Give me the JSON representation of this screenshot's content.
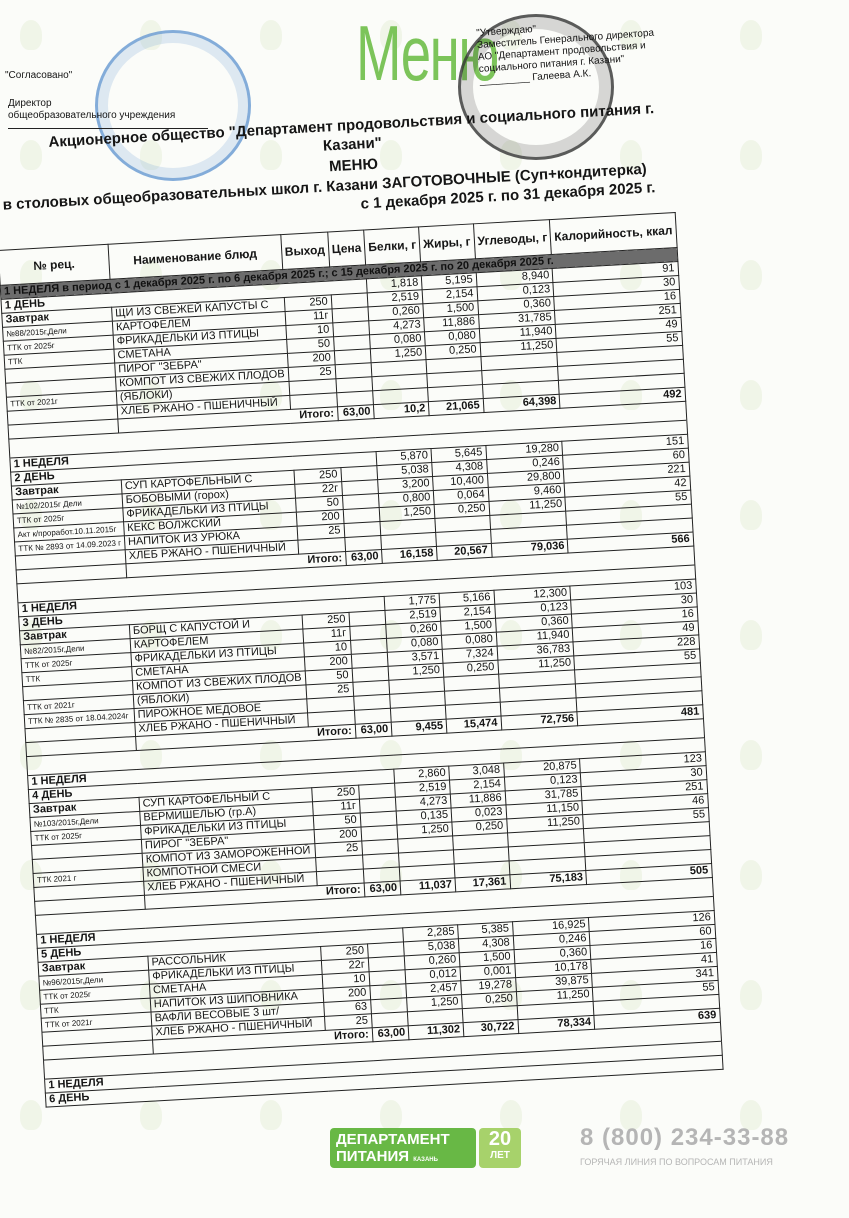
{
  "header": {
    "logo_word": "Меню",
    "agreed": "\"Согласовано\"",
    "director_line1": "Директор",
    "director_line2": "общеобразовательного учреждения",
    "approve_lines": [
      "\"Утверждаю\"",
      "Заместитель Генерального директора",
      "АО \"Департамент продовольствия и",
      "социального питания г. Казани\"",
      "_________ Галеева А.К."
    ],
    "org": "Акционерное общество \"Департамент продовольствия и социального питания г. Казани\"",
    "title": "МЕНЮ",
    "subtitle": "в столовых общеобразовательных школ г. Казани ЗАГОТОВОЧНЫЕ (Суп+кондитерка)",
    "period": "с 1 декабря 2025 г. по 31 декабря 2025 г."
  },
  "columns": [
    "№ рец.",
    "Наименование блюд",
    "Выход",
    "Цена",
    "Белки, г",
    "Жиры, г",
    "Углеводы, г",
    "Калорийность, ккал"
  ],
  "period_band": "1 НЕДЕЛЯ в период  с 1 декабря 2025 г. по 6 декабря 2025 г.; с 15 декабря 2025 г. по 20 декабря 2025 г.",
  "total_label": "Итого:",
  "meal_label": "Завтрак",
  "days": [
    {
      "week": "1 НЕДЕЛЯ",
      "day": "1 ДЕНЬ",
      "head": [
        "1,818",
        "5,195",
        "8,940",
        "91"
      ],
      "rows": [
        [
          "",
          "ЩИ ИЗ СВЕЖЕЙ КАПУСТЫ С",
          "250",
          "",
          "2,519",
          "2,154",
          "0,123",
          "30"
        ],
        [
          "№88/2015г,Дели",
          "КАРТОФЕЛЕМ",
          "11г",
          "",
          "0,260",
          "1,500",
          "0,360",
          "16"
        ],
        [
          "ТТК от 2025г",
          "ФРИКАДЕЛЬКИ ИЗ ПТИЦЫ",
          "10",
          "",
          "4,273",
          "11,886",
          "31,785",
          "251"
        ],
        [
          "ТТК",
          "СМЕТАНА",
          "50",
          "",
          "0,080",
          "0,080",
          "11,940",
          "49"
        ],
        [
          "",
          "ПИРОГ \"ЗЕБРА\"",
          "200",
          "",
          "1,250",
          "0,250",
          "11,250",
          "55"
        ],
        [
          "",
          "КОМПОТ ИЗ СВЕЖИХ ПЛОДОВ",
          "25",
          "",
          "",
          "",
          "",
          ""
        ],
        [
          "ТТК от 2021г",
          "(ЯБЛОКИ)",
          "",
          "",
          "",
          "",
          "",
          ""
        ],
        [
          "",
          "ХЛЕБ РЖАНО - ПШЕНИЧНЫЙ",
          "",
          "",
          "",
          "",
          "",
          ""
        ]
      ],
      "total": [
        "63,00",
        "10,2",
        "21,065",
        "64,398",
        "492"
      ]
    },
    {
      "week": "1 НЕДЕЛЯ",
      "day": "2 ДЕНЬ",
      "head": [
        "5,870",
        "5,645",
        "19,280",
        "151"
      ],
      "rows": [
        [
          "",
          "СУП КАРТОФЕЛЬНЫЙ С",
          "250",
          "",
          "5,038",
          "4,308",
          "0,246",
          "60"
        ],
        [
          "№102/2015г Дели",
          "БОБОВЫМИ (горох)",
          "22г",
          "",
          "3,200",
          "10,400",
          "29,800",
          "221"
        ],
        [
          "ТТК от 2025г",
          "ФРИКАДЕЛЬКИ ИЗ ПТИЦЫ",
          "50",
          "",
          "0,800",
          "0,064",
          "9,460",
          "42"
        ],
        [
          "Акт к/проработ.10.11.2015г",
          "КЕКС ВОЛЖСКИЙ",
          "200",
          "",
          "1,250",
          "0,250",
          "11,250",
          "55"
        ],
        [
          "ТТК № 2893 от 14.09.2023 г",
          "НАПИТОК ИЗ УРЮКА",
          "25",
          "",
          "",
          "",
          "",
          ""
        ],
        [
          "",
          "ХЛЕБ РЖАНО - ПШЕНИЧНЫЙ",
          "",
          "",
          "",
          "",
          "",
          ""
        ]
      ],
      "total": [
        "63,00",
        "16,158",
        "20,567",
        "79,036",
        "566"
      ]
    },
    {
      "week": "1 НЕДЕЛЯ",
      "day": "3 ДЕНЬ",
      "head": [
        "1,775",
        "5,166",
        "12,300",
        "103"
      ],
      "rows": [
        [
          "",
          "БОРЩ С КАПУСТОЙ И",
          "250",
          "",
          "2,519",
          "2,154",
          "0,123",
          "30"
        ],
        [
          "№82/2015г,Дели",
          "КАРТОФЕЛЕМ",
          "11г",
          "",
          "0,260",
          "1,500",
          "0,360",
          "16"
        ],
        [
          "ТТК от 2025г",
          "ФРИКАДЕЛЬКИ ИЗ ПТИЦЫ",
          "10",
          "",
          "0,080",
          "0,080",
          "11,940",
          "49"
        ],
        [
          "ТТК",
          "СМЕТАНА",
          "200",
          "",
          "3,571",
          "7,324",
          "36,783",
          "228"
        ],
        [
          "",
          "КОМПОТ ИЗ СВЕЖИХ ПЛОДОВ",
          "50",
          "",
          "1,250",
          "0,250",
          "11,250",
          "55"
        ],
        [
          "ТТК от 2021г",
          "(ЯБЛОКИ)",
          "25",
          "",
          "",
          "",
          "",
          ""
        ],
        [
          "ТТК № 2835 от 18.04.2024г",
          "ПИРОЖНОЕ МЕДОВОЕ",
          "",
          "",
          "",
          "",
          "",
          ""
        ],
        [
          "",
          "ХЛЕБ РЖАНО - ПШЕНИЧНЫЙ",
          "",
          "",
          "",
          "",
          "",
          ""
        ]
      ],
      "total": [
        "63,00",
        "9,455",
        "15,474",
        "72,756",
        "481"
      ]
    },
    {
      "week": "1 НЕДЕЛЯ",
      "day": "4 ДЕНЬ",
      "head": [
        "2,860",
        "3,048",
        "20,875",
        "123"
      ],
      "rows": [
        [
          "",
          "СУП КАРТОФЕЛЬНЫЙ С",
          "250",
          "",
          "2,519",
          "2,154",
          "0,123",
          "30"
        ],
        [
          "№103/2015г,Дели",
          "ВЕРМИШЕЛЬЮ (гр.А)",
          "11г",
          "",
          "4,273",
          "11,886",
          "31,785",
          "251"
        ],
        [
          "ТТК от 2025г",
          "ФРИКАДЕЛЬКИ ИЗ ПТИЦЫ",
          "50",
          "",
          "0,135",
          "0,023",
          "11,150",
          "46"
        ],
        [
          "",
          "ПИРОГ \"ЗЕБРА\"",
          "200",
          "",
          "1,250",
          "0,250",
          "11,250",
          "55"
        ],
        [
          "",
          "КОМПОТ ИЗ ЗАМОРОЖЕННОЙ",
          "25",
          "",
          "",
          "",
          "",
          ""
        ],
        [
          "ТТК 2021 г",
          "КОМПОТНОЙ СМЕСИ",
          "",
          "",
          "",
          "",
          "",
          ""
        ],
        [
          "",
          "ХЛЕБ РЖАНО - ПШЕНИЧНЫЙ",
          "",
          "",
          "",
          "",
          "",
          ""
        ]
      ],
      "total": [
        "63,00",
        "11,037",
        "17,361",
        "75,183",
        "505"
      ]
    },
    {
      "week": "1 НЕДЕЛЯ",
      "day": "5 ДЕНЬ",
      "head": [
        "2,285",
        "5,385",
        "16,925",
        "126"
      ],
      "rows": [
        [
          "",
          "РАССОЛЬНИК",
          "250",
          "",
          "5,038",
          "4,308",
          "0,246",
          "60"
        ],
        [
          "№96/2015г,Дели",
          "ФРИКАДЕЛЬКИ ИЗ ПТИЦЫ",
          "22г",
          "",
          "0,260",
          "1,500",
          "0,360",
          "16"
        ],
        [
          "ТТК от 2025г",
          "СМЕТАНА",
          "10",
          "",
          "0,012",
          "0,001",
          "10,178",
          "41"
        ],
        [
          "ТТК",
          "НАПИТОК ИЗ ШИПОВНИКА",
          "200",
          "",
          "2,457",
          "19,278",
          "39,875",
          "341"
        ],
        [
          "ТТК от 2021г",
          "ВАФЛИ ВЕСОВЫЕ 3 шт/",
          "63",
          "",
          "1,250",
          "0,250",
          "11,250",
          "55"
        ],
        [
          "",
          "ХЛЕБ РЖАНО - ПШЕНИЧНЫЙ",
          "25",
          "",
          "",
          "",
          "",
          ""
        ]
      ],
      "total": [
        "63,00",
        "11,302",
        "30,722",
        "78,334",
        "639"
      ]
    }
  ],
  "next_week": "1 НЕДЕЛЯ",
  "next_day": "6 ДЕНЬ",
  "footer": {
    "logo_line1": "ДЕПАРТАМЕНТ",
    "logo_line2": "ПИТАНИЯ",
    "logo_city": "КАЗАНЬ",
    "badge_num": "20",
    "badge_text": "ЛЕТ",
    "phone": "8 (800) 234-33-88",
    "hotline": "ГОРЯЧАЯ ЛИНИЯ ПО ВОПРОСАМ ПИТАНИЯ"
  }
}
